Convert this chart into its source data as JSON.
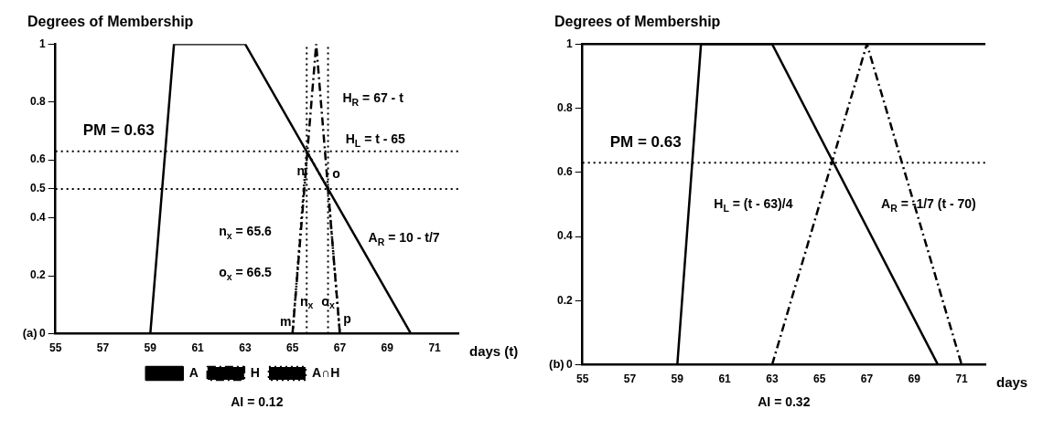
{
  "chart_data": [
    {
      "type": "line",
      "ylabel": "Degrees of Membership",
      "xlabel": "days (t)",
      "xlim": [
        55,
        72
      ],
      "xticks": [
        55,
        57,
        59,
        61,
        63,
        65,
        67,
        69,
        71
      ],
      "ylim": [
        0,
        1
      ],
      "yticks": [
        0,
        0.2,
        0.4,
        0.5,
        0.6,
        0.8,
        1
      ],
      "grid": false,
      "marker": "none",
      "legend": "bottom",
      "series": [
        {
          "name": "A",
          "color": "#000000",
          "line_style": "solid",
          "x": [
            59,
            60,
            63,
            70
          ],
          "values": [
            0,
            1,
            1,
            0
          ]
        },
        {
          "name": "H",
          "color": "#000000",
          "line_style": "dashed",
          "x": [
            65,
            66,
            67
          ],
          "values": [
            0,
            1,
            0
          ]
        },
        {
          "name": "A∩H",
          "color": "#000000",
          "line_style": "dotted",
          "x": [
            65,
            65.6,
            66.5,
            67
          ],
          "values": [
            0,
            0.63,
            0.5,
            0
          ]
        }
      ],
      "ref_lines": [
        {
          "axis": "y",
          "value": 0.63,
          "label": "PM = 0.63",
          "line_style": "dotted",
          "color": "#000000"
        },
        {
          "axis": "y",
          "value": 0.5,
          "line_style": "dotted",
          "color": "#000000"
        },
        {
          "axis": "x",
          "value": 65.6,
          "line_style": "dotted",
          "color": "#000000"
        },
        {
          "axis": "x",
          "value": 66.5,
          "line_style": "dotted",
          "color": "#000000"
        }
      ],
      "annotations": [
        "(a)",
        "AI = 0.12",
        {
          "text": "n",
          "x": 65.35,
          "y": 0.56
        },
        "o",
        "m",
        "p",
        {
          "text": "n$_{x}$",
          "x": 65.6,
          "y": 0.11
        },
        {
          "text": "o$_{x}$",
          "x": 66.5,
          "y": 0.11
        },
        "H$_{R}$ = 67 - t",
        "H$_{L}$ = t - 65",
        "A$_{R}$ = 10 - t/7",
        "n$_{x}$ = 65.6",
        "o$_{x}$ = 66.5"
      ]
    },
    {
      "type": "line",
      "ylabel": "Degrees of Membership",
      "xlabel": "days",
      "xlim": [
        55,
        72
      ],
      "xticks": [
        55,
        57,
        59,
        61,
        63,
        65,
        67,
        69,
        71
      ],
      "ylim": [
        0,
        1
      ],
      "yticks": [
        0,
        0.2,
        0.4,
        0.6,
        0.8,
        1
      ],
      "grid": false,
      "marker": "none",
      "series": [
        {
          "color": "#000000",
          "line_style": "solid",
          "x": [
            59,
            60,
            63,
            70
          ],
          "values": [
            0,
            1,
            1,
            0
          ]
        },
        {
          "color": "#000000",
          "line_style": "dashed",
          "x": [
            63,
            67,
            71
          ],
          "values": [
            0,
            1,
            0
          ]
        }
      ],
      "ref_lines": [
        {
          "axis": "y",
          "value": 0.63,
          "label": "PM = 0.63",
          "line_style": "dotted",
          "color": "#000000"
        },
        {
          "axis": "y",
          "value": 1,
          "line_style": "solid",
          "color": "#000000"
        }
      ],
      "annotations": [
        "(b)",
        "AI = 0.32",
        "H$_{L}$ = (t - 63)/4",
        "A$_{R}$ = -1/7 (t - 70)"
      ]
    }
  ]
}
